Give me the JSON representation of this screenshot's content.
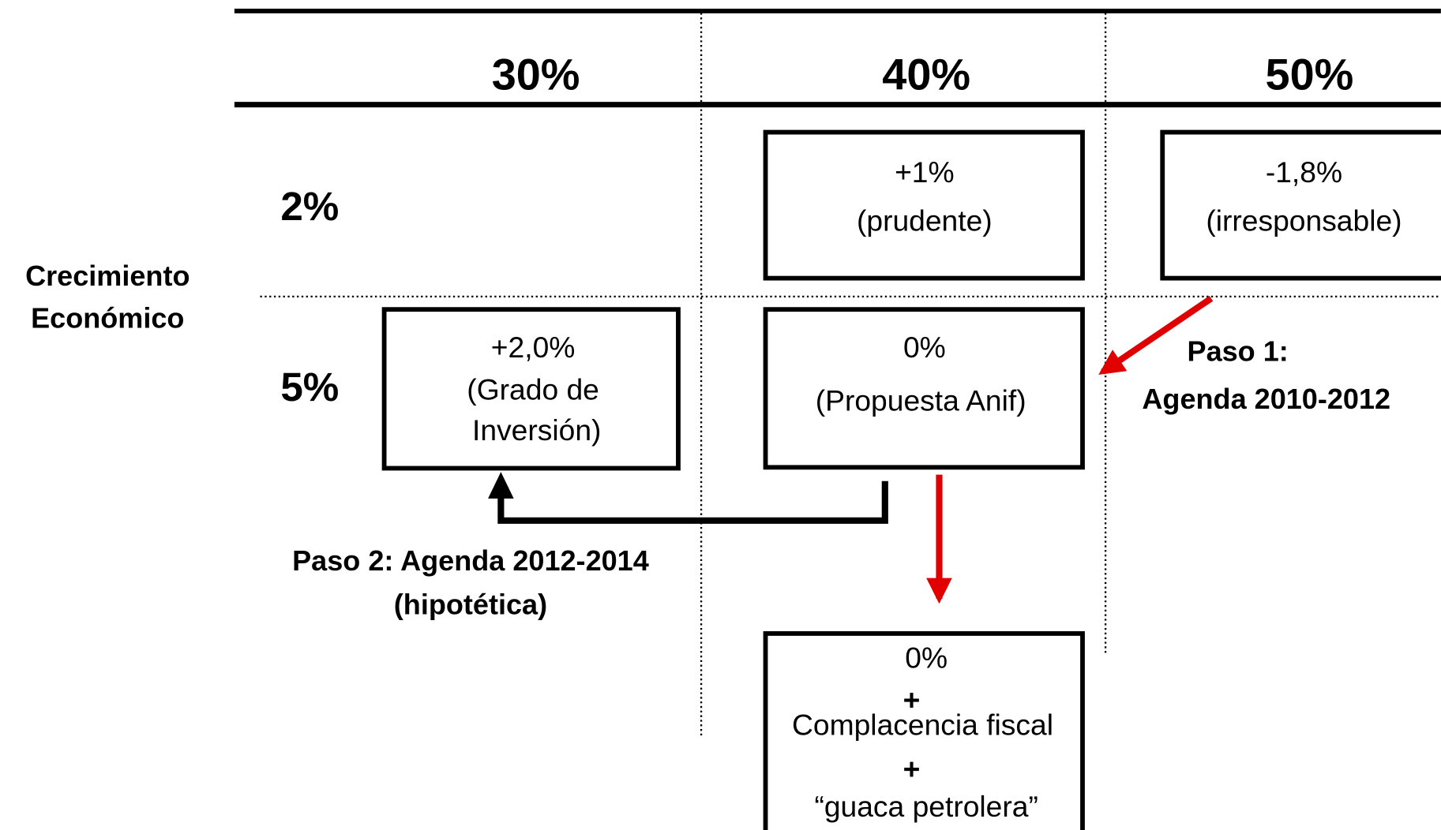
{
  "columns": [
    "30%",
    "40%",
    "50%"
  ],
  "rows": [
    "2%",
    "5%"
  ],
  "row_label": [
    "Crecimiento",
    "Económico"
  ],
  "boxes": [
    {
      "lines": [
        "+1%",
        "(prudente)"
      ]
    },
    {
      "lines": [
        "-1,8%",
        "(irresponsable)"
      ]
    },
    {
      "lines": [
        "+2,0%",
        "(Grado de",
        "Inversión)"
      ]
    },
    {
      "lines": [
        "0%",
        "(Propuesta Anif)"
      ]
    },
    {
      "lines": [
        "0%",
        "+",
        "Complacencia fiscal",
        "+",
        "“guaca petrolera”"
      ]
    }
  ],
  "steps": [
    {
      "lines": [
        "Paso 1:",
        "Agenda 2010-2012"
      ]
    },
    {
      "lines": [
        "Paso 2: Agenda 2012-2014",
        "(hipotética)"
      ]
    }
  ]
}
